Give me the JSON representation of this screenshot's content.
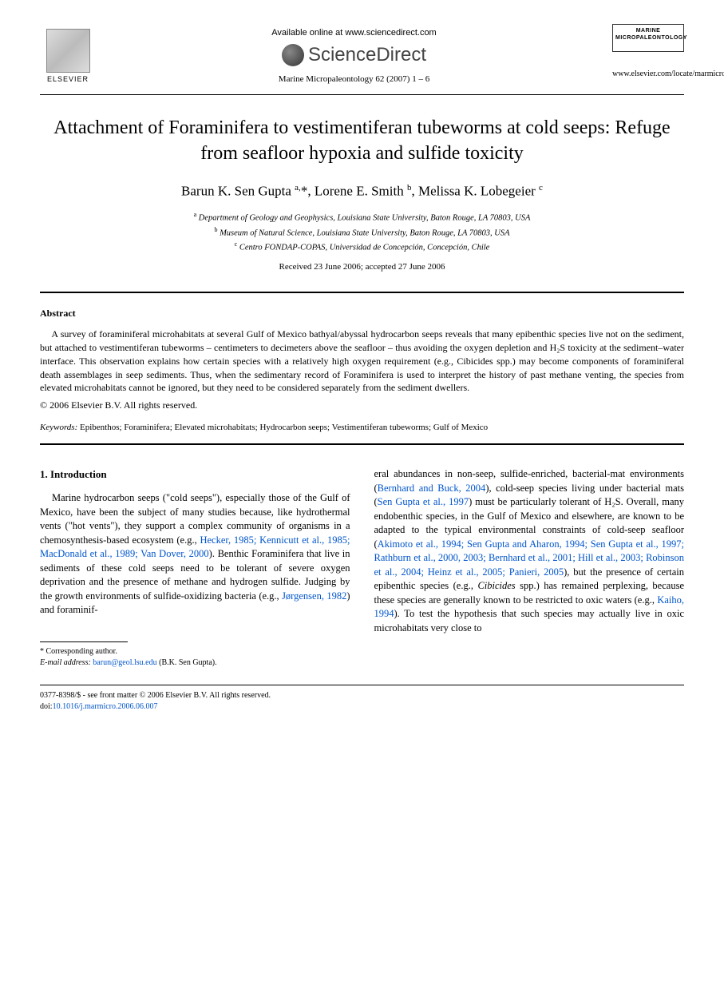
{
  "header": {
    "elsevier_label": "ELSEVIER",
    "available_online": "Available online at www.sciencedirect.com",
    "sciencedirect": "ScienceDirect",
    "journal_citation": "Marine Micropaleontology 62 (2007) 1 – 6",
    "cover_title": "MARINE MICROPALEONTOLOGY",
    "locate_url": "www.elsevier.com/locate/marmicro"
  },
  "title": "Attachment of Foraminifera to vestimentiferan tubeworms at cold seeps: Refuge from seafloor hypoxia and sulfide toxicity",
  "authors_html": "Barun K. Sen Gupta <sup>a,</sup>*, Lorene E. Smith <sup>b</sup>, Melissa K. Lobegeier <sup>c</sup>",
  "affiliations": {
    "a": "Department of Geology and Geophysics, Louisiana State University, Baton Rouge, LA 70803, USA",
    "b": "Museum of Natural Science, Louisiana State University, Baton Rouge, LA 70803, USA",
    "c": "Centro FONDAP-COPAS, Universidad de Concepción, Concepción, Chile"
  },
  "dates": "Received 23 June 2006; accepted 27 June 2006",
  "abstract": {
    "heading": "Abstract",
    "text": "A survey of foraminiferal microhabitats at several Gulf of Mexico bathyal/abyssal hydrocarbon seeps reveals that many epibenthic species live not on the sediment, but attached to vestimentiferan tubeworms – centimeters to decimeters above the seafloor – thus avoiding the oxygen depletion and H₂S toxicity at the sediment–water interface. This observation explains how certain species with a relatively high oxygen requirement (e.g., Cibicides spp.) may become components of foraminiferal death assemblages in seep sediments. Thus, when the sedimentary record of Foraminifera is used to interpret the history of past methane venting, the species from elevated microhabitats cannot be ignored, but they need to be considered separately from the sediment dwellers.",
    "copyright": "© 2006 Elsevier B.V. All rights reserved."
  },
  "keywords": {
    "label": "Keywords:",
    "text": " Epibenthos; Foraminifera; Elevated microhabitats; Hydrocarbon seeps; Vestimentiferan tubeworms; Gulf of Mexico"
  },
  "section1": {
    "heading": "1. Introduction",
    "col1_pre": "Marine hydrocarbon seeps (\"cold seeps\"), especially those of the Gulf of Mexico, have been the subject of many studies because, like hydrothermal vents (\"hot vents\"), they support a complex community of organisms in a chemosynthesis-based ecosystem (e.g., ",
    "col1_cite1": "Hecker, 1985; Kennicutt et al., 1985; MacDonald et al., 1989; Van Dover, 2000",
    "col1_mid1": "). Benthic Foraminifera that live in sediments of these cold seeps need to be tolerant of severe oxygen deprivation and the presence of methane and hydrogen sulfide. Judging by the growth environments of sulfide-oxidizing bacteria (e.g., ",
    "col1_cite2": "Jørgensen, 1982",
    "col1_post": ") and foraminif-",
    "col2_pre": "eral abundances in non-seep, sulfide-enriched, bacterial-mat environments (",
    "col2_cite1": "Bernhard and Buck, 2004",
    "col2_mid1": "), cold-seep species living under bacterial mats (",
    "col2_cite2": "Sen Gupta et al., 1997",
    "col2_mid2": ") must be particularly tolerant of H₂S. Overall, many endobenthic species, in the Gulf of Mexico and elsewhere, are known to be adapted to the typical environmental constraints of cold-seep seafloor (",
    "col2_cite3": "Akimoto et al., 1994; Sen Gupta and Aharon, 1994; Sen Gupta et al., 1997; Rathburn et al., 2000, 2003; Bernhard et al., 2001; Hill et al., 2003; Robinson et al., 2004; Heinz et al., 2005; Panieri, 2005",
    "col2_mid3": "), but the presence of certain epibenthic species (e.g., ",
    "col2_species": "Cibicides",
    "col2_mid4": " spp.) has remained perplexing, because these species are generally known to be restricted to oxic waters (e.g., ",
    "col2_cite4": "Kaiho, 1994",
    "col2_post": "). To test the hypothesis that such species may actually live in oxic microhabitats very close to"
  },
  "footnote": {
    "corresponding": "* Corresponding author.",
    "email_label": "E-mail address:",
    "email": "barun@geol.lsu.edu",
    "email_attribution": "(B.K. Sen Gupta)."
  },
  "footer": {
    "line1": "0377-8398/$ - see front matter © 2006 Elsevier B.V. All rights reserved.",
    "doi_label": "doi:",
    "doi": "10.1016/j.marmicro.2006.06.007"
  },
  "colors": {
    "link": "#0055cc",
    "text": "#000000",
    "background": "#ffffff"
  }
}
